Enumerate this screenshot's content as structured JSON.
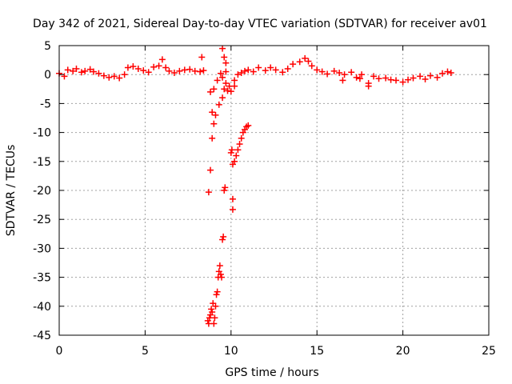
{
  "chart_data": {
    "type": "scatter",
    "title": "Day 342 of 2021, Sidereal Day-to-day VTEC variation (SDTVAR) for receiver av01",
    "xlabel": "GPS time / hours",
    "ylabel": "SDTVAR / TECUs",
    "xlim": [
      0,
      25
    ],
    "ylim": [
      -45,
      5
    ],
    "xticks": [
      0,
      5,
      10,
      15,
      20,
      25
    ],
    "yticks": [
      5,
      0,
      -5,
      -10,
      -15,
      -20,
      -25,
      -30,
      -35,
      -40,
      -45
    ],
    "grid": true,
    "legend": "none",
    "marker": "+",
    "colors": {
      "series": "#ff0000",
      "grid": "#a0a0a0",
      "axis": "#000000"
    },
    "series": [
      {
        "name": "av01",
        "x": [
          0.0,
          0.3,
          0.5,
          0.8,
          1.0,
          1.3,
          1.5,
          1.8,
          2.0,
          2.3,
          2.6,
          2.9,
          3.2,
          3.5,
          3.8,
          4.0,
          4.3,
          4.6,
          4.9,
          5.2,
          5.5,
          5.8,
          6.0,
          6.2,
          6.4,
          6.7,
          7.0,
          7.3,
          7.6,
          7.9,
          8.2,
          8.4,
          8.65,
          8.7,
          8.75,
          8.8,
          8.85,
          8.9,
          8.95,
          9.0,
          9.05,
          9.1,
          9.15,
          9.2,
          9.25,
          9.3,
          9.35,
          9.4,
          9.45,
          9.5,
          9.55,
          9.6,
          9.65,
          8.7,
          8.8,
          8.9,
          9.0,
          9.1,
          9.3,
          9.5,
          9.6,
          9.7,
          8.8,
          8.9,
          9.0,
          9.2,
          9.4,
          9.5,
          9.7,
          9.9,
          10.1,
          10.05,
          10.1,
          10.2,
          10.3,
          10.4,
          10.5,
          10.6,
          10.7,
          10.8,
          10.9,
          11.0,
          10.0,
          10.1,
          10.2,
          10.4,
          10.6,
          10.8,
          11.0,
          11.3,
          11.6,
          12.0,
          12.3,
          12.6,
          13.0,
          13.3,
          13.6,
          14.0,
          14.3,
          14.5,
          14.7,
          15.0,
          15.3,
          15.6,
          16.0,
          16.3,
          16.6,
          17.0,
          17.3,
          17.6,
          18.0,
          18.3,
          18.6,
          19.0,
          19.3,
          19.6,
          20.0,
          20.3,
          20.6,
          21.0,
          21.3,
          21.6,
          22.0,
          22.3,
          22.6,
          22.8,
          8.3,
          9.5,
          9.6,
          9.7,
          9.8,
          10.0,
          10.2,
          16.5,
          17.5,
          18.0
        ],
        "y": [
          0.2,
          -0.3,
          0.8,
          0.6,
          1.0,
          0.4,
          0.6,
          0.9,
          0.5,
          0.2,
          -0.2,
          -0.5,
          -0.3,
          -0.6,
          0.0,
          1.2,
          1.4,
          1.0,
          0.7,
          0.4,
          1.3,
          1.5,
          2.6,
          1.2,
          0.6,
          0.3,
          0.6,
          0.8,
          0.9,
          0.6,
          0.5,
          0.7,
          -42.5,
          -43.0,
          -42.0,
          -41.5,
          -40.5,
          -41.0,
          -39.5,
          -43.0,
          -42.0,
          -40.0,
          -38.0,
          -37.5,
          -35.0,
          -34.0,
          -33.0,
          -34.5,
          -35.0,
          -28.5,
          -28.0,
          -20.0,
          -19.5,
          -20.3,
          -16.5,
          -11.0,
          -8.5,
          -7.0,
          -5.2,
          -4.0,
          -2.5,
          -1.5,
          -3.0,
          -6.5,
          -2.5,
          -1.0,
          0.2,
          -0.5,
          2.0,
          -2.0,
          -23.3,
          -13.0,
          -15.5,
          -15.0,
          -14.0,
          -13.0,
          -12.0,
          -11.0,
          -10.0,
          -9.5,
          -9.0,
          -8.8,
          -13.5,
          -21.5,
          -1.0,
          0.0,
          0.3,
          0.6,
          0.8,
          0.5,
          1.2,
          0.7,
          1.2,
          0.8,
          0.4,
          1.0,
          1.8,
          2.2,
          2.8,
          2.3,
          1.5,
          0.8,
          0.5,
          0.1,
          0.6,
          0.3,
          0.0,
          0.4,
          -0.5,
          0.0,
          -1.5,
          -0.3,
          -0.7,
          -0.6,
          -0.9,
          -1.0,
          -1.3,
          -0.9,
          -0.6,
          -0.3,
          -0.8,
          -0.2,
          -0.5,
          0.2,
          0.5,
          0.3,
          3.0,
          4.5,
          3.0,
          0.5,
          -2.8,
          -2.9,
          -2.0,
          -1.0,
          -0.7,
          -2.0
        ]
      }
    ]
  }
}
